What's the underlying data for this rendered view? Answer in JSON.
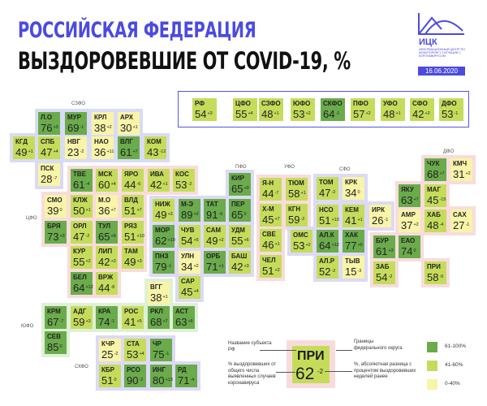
{
  "header": {
    "title": "РОССИЙСКАЯ ФЕДЕРАЦИЯ",
    "subtitle": "ВЫЗДОРОВЕВШИЕ ОТ COVID-19, %",
    "logo_name": "ИЦК",
    "logo_subtitle": "Информационный центр по мониторингу ситуации с коронавирусом",
    "date": "16.06.2020"
  },
  "colors": {
    "high": "#6aab4b",
    "medium": "#c5dc5b",
    "low": "#f8f4a8",
    "accent": "#4b4be0"
  },
  "district_colors": {
    "СЗФО": "#d9dbf5",
    "ЦФО": "#f8dcdc",
    "ПФО": "#dcdaf5",
    "УФО": "#f8dcdc",
    "СФО": "#dcdaf5",
    "ДФО": "#f8dcdc",
    "ЮФО": "#dff0d6",
    "СКФО": "#dcdaf5"
  },
  "summary": [
    {
      "code": "РФ",
      "value": 54,
      "delta": "+3"
    },
    {
      "code": "ЦФО",
      "value": 55,
      "delta": "+4"
    },
    {
      "code": "СЗФО",
      "value": 48,
      "delta": "+1"
    },
    {
      "code": "ЮФО",
      "value": 53,
      "delta": "+2"
    },
    {
      "code": "СКФО",
      "value": 64,
      "delta": "-1"
    },
    {
      "code": "ПФО",
      "value": 57,
      "delta": "+2"
    },
    {
      "code": "УФО",
      "value": 48,
      "delta": "+1"
    },
    {
      "code": "СФО",
      "value": 42,
      "delta": "+2"
    },
    {
      "code": "ДФО",
      "value": 53,
      "delta": "-1"
    }
  ],
  "district_labels": [
    "СЗФО",
    "ЦФО",
    "ПФО",
    "УФО",
    "СФО",
    "ДФО",
    "ЮФО",
    "СКФО"
  ],
  "regions": [
    {
      "code": "Л.О",
      "value": 76,
      "delta": "+3",
      "district": "СЗФО"
    },
    {
      "code": "МУР",
      "value": 69,
      "delta": "-1",
      "district": "СЗФО"
    },
    {
      "code": "КРЛ",
      "value": 38,
      "delta": "+2",
      "district": "СЗФО"
    },
    {
      "code": "АРХ",
      "value": 30,
      "delta": "+1",
      "district": "СЗФО"
    },
    {
      "code": "КГД",
      "value": 49,
      "delta": "+1",
      "district": "СЗФО"
    },
    {
      "code": "СПБ",
      "value": 47,
      "delta": "+4",
      "district": "СЗФО"
    },
    {
      "code": "НВГ",
      "value": 23,
      "delta": "-2",
      "district": "СЗФО"
    },
    {
      "code": "НАО",
      "value": 36,
      "delta": "+11",
      "district": "СЗФО"
    },
    {
      "code": "ВЛГ",
      "value": 61,
      "delta": "+7",
      "district": "СЗФО"
    },
    {
      "code": "КОМ",
      "value": 43,
      "delta": "-12",
      "district": "СЗФО"
    },
    {
      "code": "ПСК",
      "value": 28,
      "delta": "-7",
      "district": "СЗФО"
    },
    {
      "code": "ТВЕ",
      "value": 61,
      "delta": "-4",
      "district": "ЦФО"
    },
    {
      "code": "МСК",
      "value": 60,
      "delta": "+4",
      "district": "ЦФО"
    },
    {
      "code": "ЯРО",
      "value": 44,
      "delta": "-6",
      "district": "ЦФО"
    },
    {
      "code": "ИВА",
      "value": 42,
      "delta": "+1",
      "district": "ЦФО"
    },
    {
      "code": "КОС",
      "value": 53,
      "delta": "-2",
      "district": "ЦФО"
    },
    {
      "code": "СМО",
      "value": 39,
      "delta": "0",
      "district": "ЦФО"
    },
    {
      "code": "КЛЖ",
      "value": 50,
      "delta": "+1",
      "district": "ЦФО"
    },
    {
      "code": "М.О",
      "value": 36,
      "delta": "+7",
      "district": "ЦФО"
    },
    {
      "code": "ВЛД",
      "value": 51,
      "delta": "+7",
      "district": "ЦФО"
    },
    {
      "code": "БРЯ",
      "value": 73,
      "delta": "+3",
      "district": "ЦФО"
    },
    {
      "code": "ОРЛ",
      "value": 47,
      "delta": "-2",
      "district": "ЦФО"
    },
    {
      "code": "ТУЛ",
      "value": 65,
      "delta": "+9",
      "district": "ЦФО"
    },
    {
      "code": "РЯЗ",
      "value": 51,
      "delta": "+10",
      "district": "ЦФО"
    },
    {
      "code": "КУР",
      "value": 55,
      "delta": "+2",
      "district": "ЦФО"
    },
    {
      "code": "ЛИП",
      "value": 42,
      "delta": "+3",
      "district": "ЦФО"
    },
    {
      "code": "ТАМ",
      "value": 49,
      "delta": "+3",
      "district": "ЦФО"
    },
    {
      "code": "БЕЛ",
      "value": 64,
      "delta": "+12",
      "district": "ЦФО"
    },
    {
      "code": "ВРЖ",
      "value": 44,
      "delta": "-8",
      "district": "ЦФО"
    },
    {
      "code": "КИР",
      "value": 65,
      "delta": "+9",
      "district": "ПФО"
    },
    {
      "code": "НИЖ",
      "value": 49,
      "delta": "+3",
      "district": "ПФО"
    },
    {
      "code": "М-Э",
      "value": 89,
      "delta": "+2",
      "district": "ПФО"
    },
    {
      "code": "ТАТ",
      "value": 91,
      "delta": "-6",
      "district": "ПФО"
    },
    {
      "code": "ПЕР",
      "value": 65,
      "delta": "0",
      "district": "ПФО"
    },
    {
      "code": "МОР",
      "value": 62,
      "delta": "+10",
      "district": "ПФО"
    },
    {
      "code": "ЧУВ",
      "value": 54,
      "delta": "+5",
      "district": "ПФО"
    },
    {
      "code": "САМ",
      "value": 49,
      "delta": "+2",
      "district": "ПФО"
    },
    {
      "code": "УДМ",
      "value": 55,
      "delta": "+6",
      "district": "ПФО"
    },
    {
      "code": "ПНЗ",
      "value": 79,
      "delta": "-1",
      "district": "ПФО"
    },
    {
      "code": "УЛН",
      "value": 34,
      "delta": "+2",
      "district": "ПФО"
    },
    {
      "code": "ОРБ",
      "value": 71,
      "delta": "+1",
      "district": "ПФО"
    },
    {
      "code": "БАШ",
      "value": 42,
      "delta": "+3",
      "district": "ПФО"
    },
    {
      "code": "САР",
      "value": 45,
      "delta": "+4",
      "district": "ПФО"
    },
    {
      "code": "Я-Н",
      "value": 44,
      "delta": "-7",
      "district": "УФО"
    },
    {
      "code": "ТЮМ",
      "value": 58,
      "delta": "+1",
      "district": "УФО"
    },
    {
      "code": "Х-М",
      "value": 45,
      "delta": "+7",
      "district": "УФО"
    },
    {
      "code": "КГН",
      "value": 59,
      "delta": "-2",
      "district": "УФО"
    },
    {
      "code": "СВЕ",
      "value": 46,
      "delta": "+1",
      "district": "УФО"
    },
    {
      "code": "ЧЕЛ",
      "value": 51,
      "delta": "+2",
      "district": "УФО"
    },
    {
      "code": "ТОМ",
      "value": 47,
      "delta": "-2",
      "district": "СФО"
    },
    {
      "code": "КРК",
      "value": 34,
      "delta": "0",
      "district": "СФО"
    },
    {
      "code": "НСО",
      "value": 51,
      "delta": "+10",
      "district": "СФО"
    },
    {
      "code": "КЕМ",
      "value": 41,
      "delta": "+1",
      "district": "СФО"
    },
    {
      "code": "ИРК",
      "value": 26,
      "delta": "-1",
      "district": "СФО"
    },
    {
      "code": "ОМС",
      "value": 53,
      "delta": "+2",
      "district": "СФО"
    },
    {
      "code": "АЛ.К",
      "value": 64,
      "delta": "+12",
      "district": "СФО"
    },
    {
      "code": "ХАК",
      "value": 77,
      "delta": "+5",
      "district": "СФО"
    },
    {
      "code": "АЛ.Р",
      "value": 52,
      "delta": "-2",
      "district": "СФО"
    },
    {
      "code": "ТЫВ",
      "value": 15,
      "delta": "-3",
      "district": "СФО"
    },
    {
      "code": "ЧУК",
      "value": 68,
      "delta": "+7",
      "district": "ДФО"
    },
    {
      "code": "КМЧ",
      "value": 31,
      "delta": "+2",
      "district": "ДФО"
    },
    {
      "code": "ЯКУ",
      "value": 63,
      "delta": "+7",
      "district": "ДФО"
    },
    {
      "code": "МАГ",
      "value": 45,
      "delta": "-15",
      "district": "ДФО"
    },
    {
      "code": "АМР",
      "value": 37,
      "delta": "+2",
      "district": "ДФО"
    },
    {
      "code": "ХАБ",
      "value": 48,
      "delta": "-4",
      "district": "ДФО"
    },
    {
      "code": "САХ",
      "value": 27,
      "delta": "-1",
      "district": "ДФО"
    },
    {
      "code": "БУР",
      "value": 61,
      "delta": "+3",
      "district": "ДФО"
    },
    {
      "code": "ЕАО",
      "value": 74,
      "delta": "0",
      "district": "ДФО"
    },
    {
      "code": "ЗАБ",
      "value": 54,
      "delta": "-2",
      "district": "ДФО"
    },
    {
      "code": "ПРИ",
      "value": 58,
      "delta": "-5",
      "district": "ДФО"
    },
    {
      "code": "ВГГ",
      "value": 38,
      "delta": "+1",
      "district": "ЮФО"
    },
    {
      "code": "КРМ",
      "value": 67,
      "delta": "-7",
      "district": "ЮФО"
    },
    {
      "code": "АДГ",
      "value": 59,
      "delta": "+3",
      "district": "ЮФО"
    },
    {
      "code": "КРА",
      "value": 74,
      "delta": "-1",
      "district": "ЮФО"
    },
    {
      "code": "РОС",
      "value": 41,
      "delta": "+5",
      "district": "ЮФО"
    },
    {
      "code": "РКЛ",
      "value": 68,
      "delta": "+7",
      "district": "ЮФО"
    },
    {
      "code": "АСТ",
      "value": 63,
      "delta": "+6",
      "district": "ЮФО"
    },
    {
      "code": "СЕВ",
      "value": 85,
      "delta": "0",
      "district": "ЮФО"
    },
    {
      "code": "КЧР",
      "value": 25,
      "delta": "-2",
      "district": "СКФО"
    },
    {
      "code": "СТА",
      "value": 53,
      "delta": "+4",
      "district": "СКФО"
    },
    {
      "code": "ЧР",
      "value": 75,
      "delta": "-1",
      "district": "СКФО"
    },
    {
      "code": "КБР",
      "value": 51,
      "delta": "0",
      "district": "СКФО"
    },
    {
      "code": "РСО",
      "value": 90,
      "delta": "-2",
      "district": "СКФО"
    },
    {
      "code": "ИНГ",
      "value": 80,
      "delta": "+13",
      "district": "СКФО"
    },
    {
      "code": "РД",
      "value": 71,
      "delta": "-4",
      "district": "СКФО"
    }
  ],
  "legend": {
    "example_code": "ПРИ",
    "example_value": "62",
    "example_delta": "-2",
    "note_name": "Название субъекта РФ",
    "note_percent": "% выздоровевших от общего числа выявленных случаев коронавируса",
    "note_border": "Границы федерального округа",
    "note_delta": "%, абсолютная разница с процентом выздоровевших неделей ранее",
    "ranges": [
      "61-100%",
      "41-60%",
      "0-40%"
    ]
  }
}
